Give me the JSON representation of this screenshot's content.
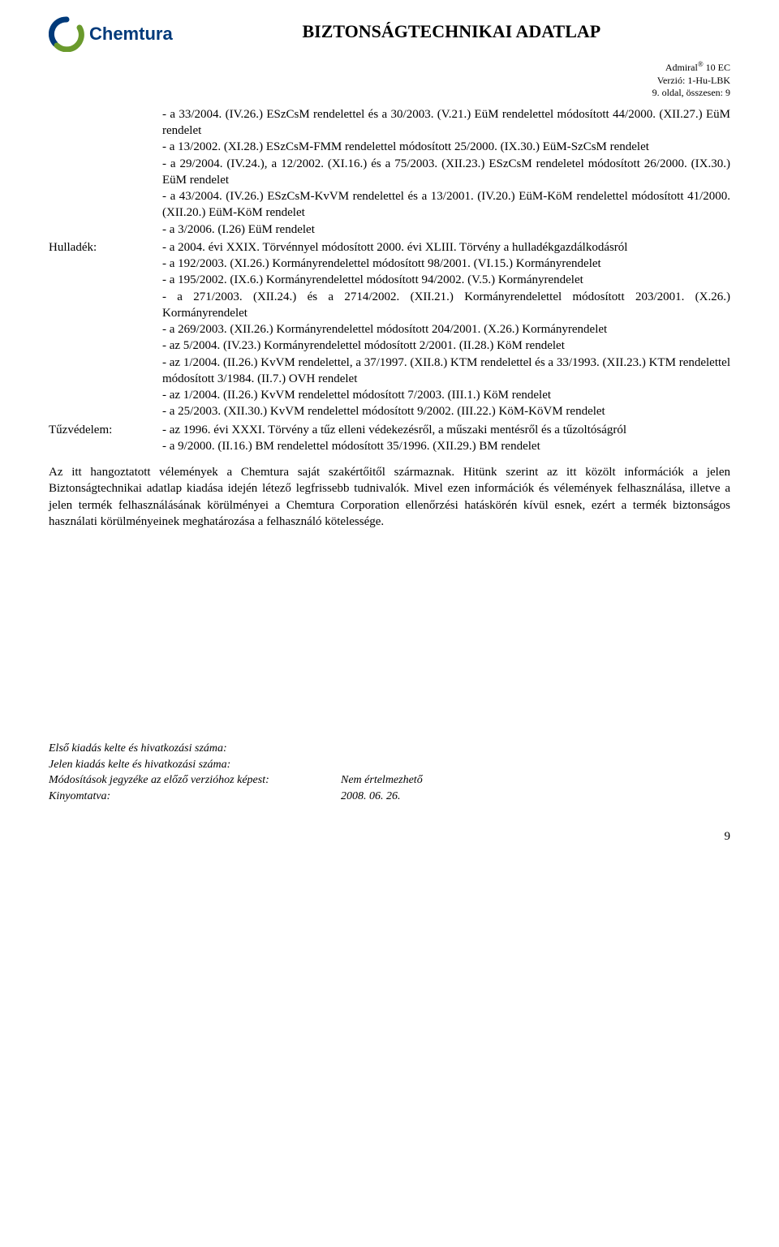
{
  "header": {
    "logo_text": "Chemtura",
    "logo_colors": {
      "blue": "#003a7a",
      "green": "#6a9a2c"
    },
    "title": "BIZTONSÁGTECHNIKAI ADATLAP"
  },
  "meta": {
    "line1_pre": "Admiral",
    "line1_sup": "®",
    "line1_post": " 10 EC",
    "line2": "Verzió: 1-Hu-LBK",
    "line3": "9. oldal, összesen: 9"
  },
  "intro_block": "- a 33/2004. (IV.26.) ESzCsM rendelettel és a 30/2003. (V.21.) EüM rendelettel módosított 44/2000. (XII.27.) EüM rendelet\n- a 13/2002. (XI.28.) ESzCsM-FMM rendelettel módosított 25/2000. (IX.30.) EüM-SzCsM rendelet\n- a 29/2004. (IV.24.), a 12/2002. (XI.16.) és a 75/2003. (XII.23.) ESzCsM rendeletel módosított 26/2000. (IX.30.) EüM rendelet\n- a 43/2004. (IV.26.) ESzCsM-KvVM rendelettel és a 13/2001. (IV.20.) EüM-KöM rendelettel módosított 41/2000. (XII.20.) EüM-KöM rendelet\n- a 3/2006. (I.26) EüM rendelet",
  "sections": [
    {
      "label": "Hulladék:",
      "text": "- a 2004. évi XXIX. Törvénnyel módosított 2000. évi XLIII. Törvény a hulladékgazdálkodásról\n- a 192/2003. (XI.26.) Kormányrendelettel módosított 98/2001. (VI.15.) Kormányrendelet\n- a 195/2002. (IX.6.) Kormányrendelettel módosított 94/2002. (V.5.) Kormányrendelet\n- a 271/2003. (XII.24.) és a 2714/2002. (XII.21.) Kormányrendelettel módosított 203/2001. (X.26.) Kormányrendelet\n- a 269/2003. (XII.26.) Kormányrendelettel módosított 204/2001. (X.26.) Kormányrendelet\n- az 5/2004. (IV.23.) Kormányrendelettel módosított 2/2001. (II.28.) KöM rendelet\n- az 1/2004. (II.26.) KvVM rendelettel, a 37/1997. (XII.8.) KTM rendelettel és a 33/1993. (XII.23.) KTM rendelettel módosított 3/1984. (II.7.) OVH rendelet\n- az 1/2004. (II.26.) KvVM rendelettel módosított 7/2003. (III.1.) KöM rendelet\n- a 25/2003. (XII.30.) KvVM rendelettel módosított 9/2002. (III.22.) KöM-KöVM rendelet"
    },
    {
      "label": "Tűzvédelem:",
      "text": "- az 1996. évi XXXI. Törvény a tűz elleni védekezésről, a műszaki mentésről és a tűzoltóságról\n- a 9/2000. (II.16.) BM rendelettel módosított 35/1996. (XII.29.) BM rendelet"
    }
  ],
  "disclaimer": "Az itt hangoztatott vélemények a Chemtura saját szakértőitől származnak. Hitünk szerint az itt közölt információk a jelen Biztonságtechnikai adatlap kiadása idején létező legfrissebb tudnivalók. Mivel ezen információk és vélemények felhasználása, illetve a jelen termék felhasználásának körülményei a Chemtura Corporation ellenőrzési hatáskörén kívül esnek, ezért a termék biztonságos használati körülményeinek meghatározása a felhasználó kötelessége.",
  "footer": {
    "rows": [
      {
        "label": "Első kiadás kelte és hivatkozási száma:",
        "value": ""
      },
      {
        "label": "Jelen kiadás kelte és hivatkozási száma:",
        "value": ""
      },
      {
        "label": "Módosítások jegyzéke az előző verzióhoz képest:",
        "value": "Nem értelmezhető"
      },
      {
        "label": "Kinyomtatva:",
        "value": "2008. 06. 26."
      }
    ]
  },
  "page_number": "9"
}
